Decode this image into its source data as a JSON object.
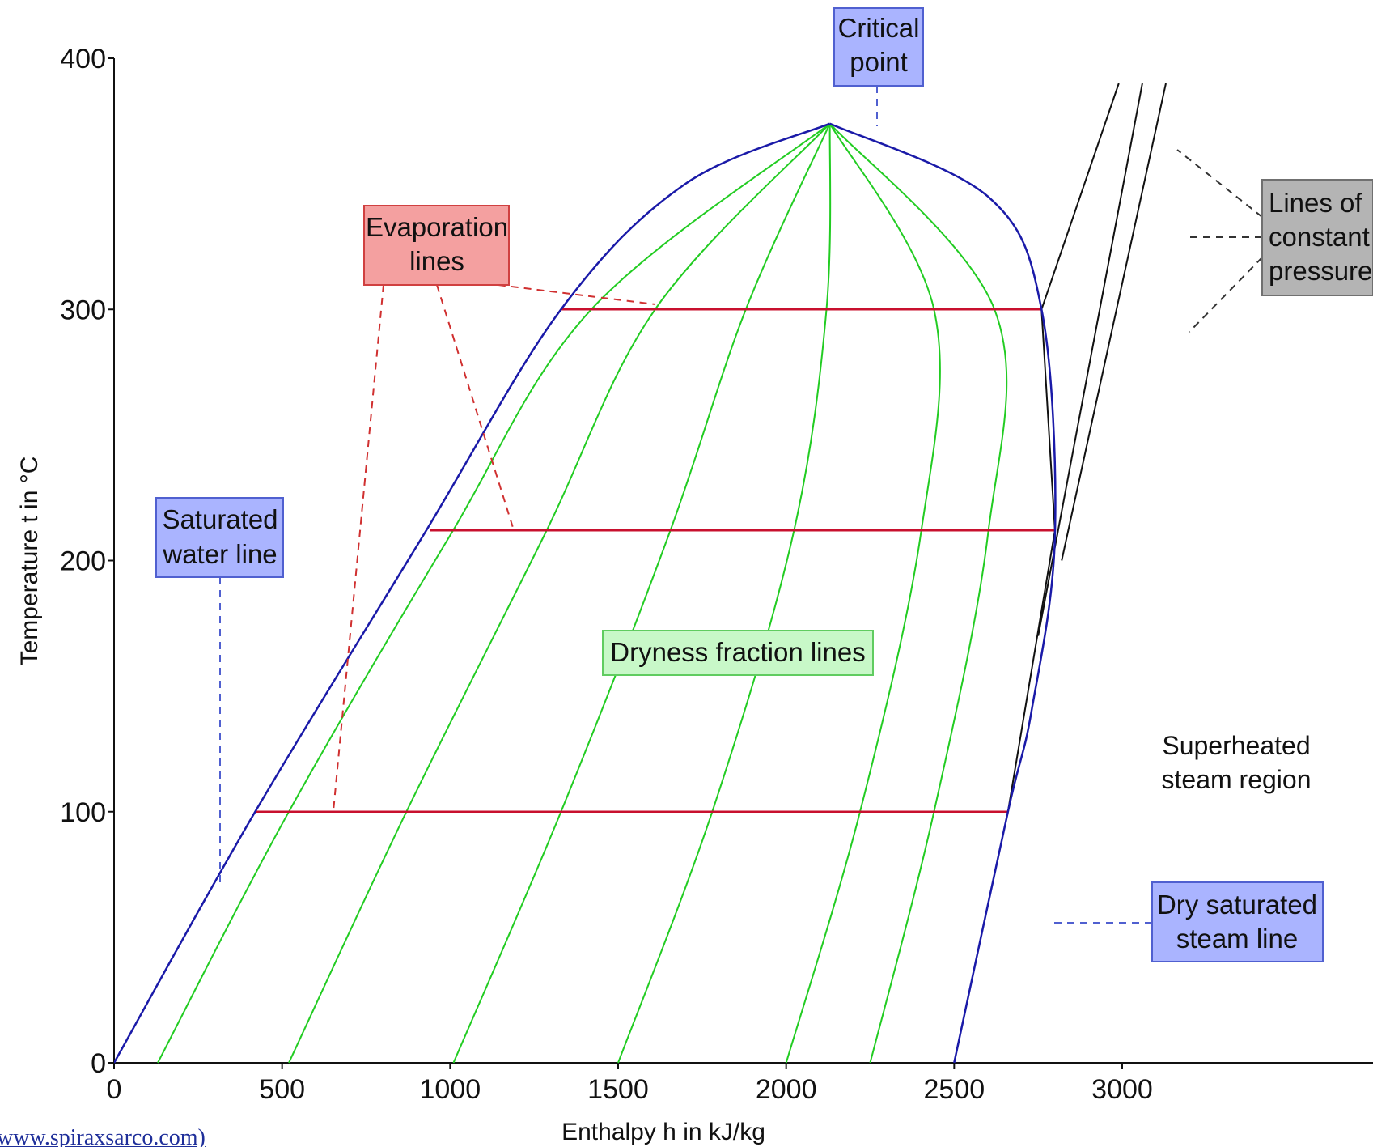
{
  "chart_data": {
    "type": "line",
    "xlabel": "Enthalpy h in kJ/kg",
    "ylabel": "Temperature t in °C",
    "xlim": [
      0,
      3500
    ],
    "ylim": [
      0,
      400
    ],
    "x_ticks": [
      0,
      500,
      1000,
      1500,
      2000,
      2500,
      3000
    ],
    "y_ticks": [
      0,
      100,
      200,
      300,
      400
    ],
    "grid": false,
    "critical_point": {
      "x": 2130,
      "y": 374
    },
    "series": [
      {
        "role": "saturated-water-line",
        "color": "#1a1aa8",
        "points": [
          [
            0,
            0
          ],
          [
            420,
            100
          ],
          [
            920,
            210
          ],
          [
            1330,
            300
          ],
          [
            1700,
            350
          ],
          [
            2130,
            374
          ]
        ]
      },
      {
        "role": "dry-saturated-steam-line",
        "color": "#1a1aa8",
        "points": [
          [
            2130,
            374
          ],
          [
            2600,
            345
          ],
          [
            2760,
            300
          ],
          [
            2800,
            210
          ],
          [
            2730,
            140
          ],
          [
            2660,
            100
          ],
          [
            2500,
            0
          ]
        ]
      },
      {
        "role": "evaporation-lines",
        "color": "#c8102e",
        "segments": [
          {
            "t": 100,
            "x1": 420,
            "x2": 2660
          },
          {
            "t": 212,
            "x1": 940,
            "x2": 2800
          },
          {
            "t": 300,
            "x1": 1330,
            "x2": 2760
          }
        ]
      },
      {
        "role": "dryness-fraction-lines",
        "color": "#22cc22",
        "curves": [
          [
            [
              130,
              0
            ],
            [
              520,
              100
            ],
            [
              1000,
              210
            ],
            [
              1420,
              300
            ],
            [
              2130,
              374
            ]
          ],
          [
            [
              520,
              0
            ],
            [
              870,
              100
            ],
            [
              1280,
              210
            ],
            [
              1610,
              300
            ],
            [
              2130,
              374
            ]
          ],
          [
            [
              1010,
              0
            ],
            [
              1330,
              100
            ],
            [
              1650,
              210
            ],
            [
              1880,
              300
            ],
            [
              2130,
              374
            ]
          ],
          [
            [
              1500,
              0
            ],
            [
              1780,
              100
            ],
            [
              2020,
              210
            ],
            [
              2120,
              300
            ],
            [
              2130,
              374
            ]
          ],
          [
            [
              2000,
              0
            ],
            [
              2220,
              100
            ],
            [
              2400,
              210
            ],
            [
              2440,
              300
            ],
            [
              2130,
              374
            ]
          ],
          [
            [
              2250,
              0
            ],
            [
              2440,
              100
            ],
            [
              2600,
              210
            ],
            [
              2620,
              300
            ],
            [
              2130,
              374
            ]
          ]
        ]
      },
      {
        "role": "lines-of-constant-pressure",
        "color": "#111111",
        "lines": [
          [
            [
              2660,
              100
            ],
            [
              2800,
              212
            ],
            [
              2760,
              300
            ],
            [
              2990,
              390
            ]
          ],
          [
            [
              2750,
              170
            ],
            [
              3060,
              390
            ]
          ],
          [
            [
              2820,
              200
            ],
            [
              3130,
              390
            ]
          ]
        ]
      }
    ]
  },
  "labels": {
    "critical_point": [
      "Critical",
      "point"
    ],
    "evaporation_lines": [
      "Evaporation",
      "lines"
    ],
    "lines_of_constant_pressure": [
      "Lines of",
      "constant",
      "pressure"
    ],
    "saturated_water_line": [
      "Saturated",
      "water line"
    ],
    "dryness_fraction_lines": "Dryness fraction lines",
    "superheated_region": [
      "Superheated",
      "steam region"
    ],
    "dry_saturated_steam_line": [
      "Dry saturated",
      "steam line"
    ]
  },
  "colors": {
    "box_blue_fill": "#aab4ff",
    "box_blue_stroke": "#5060d0",
    "box_red_fill": "#f4a0a0",
    "box_red_stroke": "#d04040",
    "box_green_fill": "#c8f8c8",
    "box_green_stroke": "#60cc60",
    "box_gray_fill": "#b4b4b4",
    "box_gray_stroke": "#707070"
  },
  "source_text": "www.spiraxsarco.com)"
}
